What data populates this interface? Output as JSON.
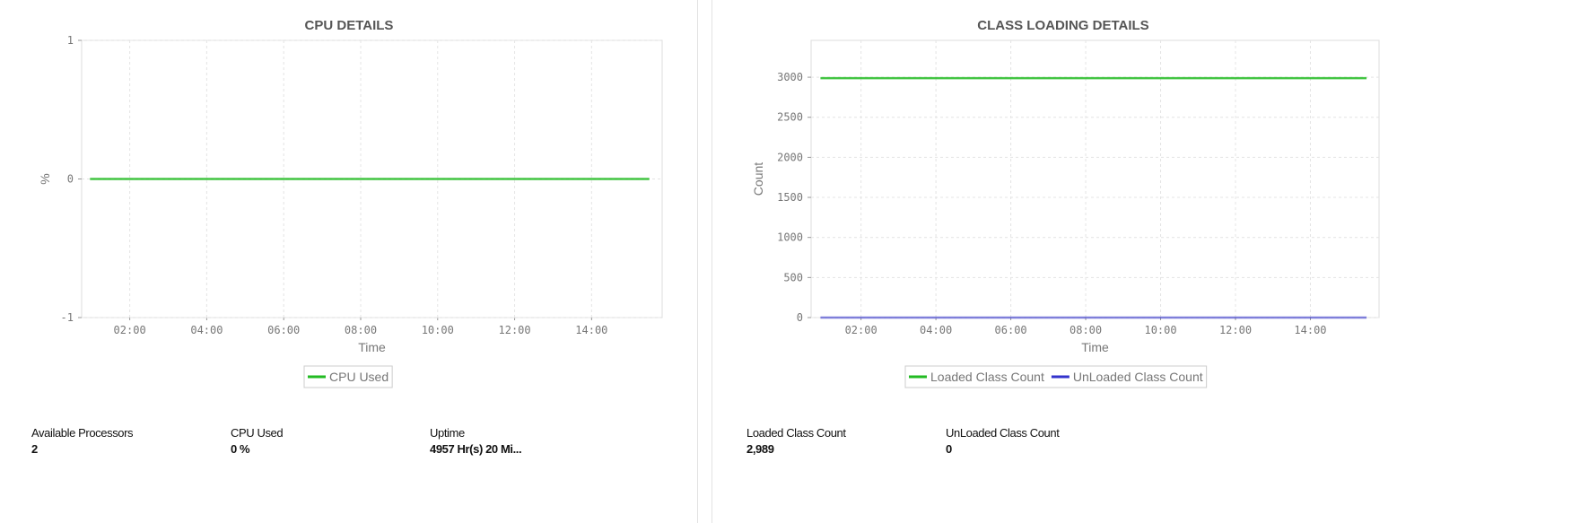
{
  "chart_data": [
    {
      "type": "line",
      "title": "CPU DETAILS",
      "xlabel": "Time",
      "ylabel": "%",
      "xticks": [
        "02:00",
        "04:00",
        "06:00",
        "08:00",
        "10:00",
        "12:00",
        "14:00"
      ],
      "yticks": [
        "-1",
        "0",
        "1"
      ],
      "xlim": [
        "00:45",
        "15:50"
      ],
      "ylim": [
        -1,
        1
      ],
      "grid": true,
      "legend_position": "bottom",
      "series": [
        {
          "name": "CPU Used",
          "color": "#22bb22",
          "x": [
            "00:58",
            "15:30"
          ],
          "y": [
            0,
            0
          ]
        }
      ]
    },
    {
      "type": "line",
      "title": "CLASS LOADING DETAILS",
      "xlabel": "Time",
      "ylabel": "Count",
      "xticks": [
        "02:00",
        "04:00",
        "06:00",
        "08:00",
        "10:00",
        "12:00",
        "14:00"
      ],
      "yticks": [
        "0",
        "500",
        "1000",
        "1500",
        "2000",
        "2500",
        "3000"
      ],
      "xlim": [
        "00:40",
        "15:50"
      ],
      "ylim": [
        0,
        3460
      ],
      "grid": true,
      "legend_position": "bottom",
      "series": [
        {
          "name": "Loaded Class Count",
          "color": "#22bb22",
          "x": [
            "00:55",
            "15:30"
          ],
          "y": [
            2989,
            2989
          ]
        },
        {
          "name": "UnLoaded Class Count",
          "color": "#3333cc",
          "x": [
            "00:55",
            "15:30"
          ],
          "y": [
            0,
            0
          ]
        }
      ]
    }
  ],
  "cpu_stats": [
    {
      "label": "Available Processors",
      "value": "2"
    },
    {
      "label": "CPU Used",
      "value": "0 %"
    },
    {
      "label": "Uptime",
      "value": "4957 Hr(s) 20 Mi..."
    }
  ],
  "class_stats": [
    {
      "label": "Loaded Class Count",
      "value": "2,989"
    },
    {
      "label": "UnLoaded Class Count",
      "value": "0"
    }
  ]
}
